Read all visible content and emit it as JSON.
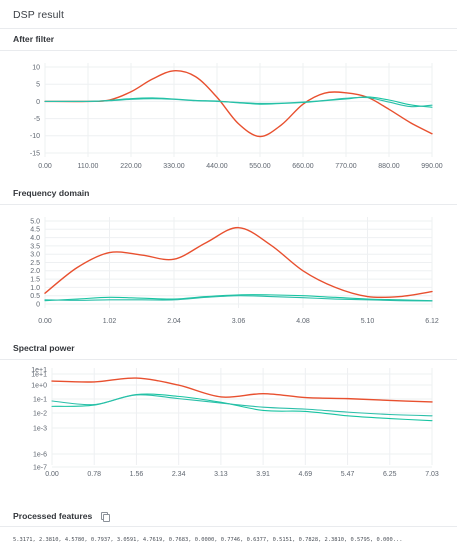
{
  "page_title": "DSP result",
  "sections": [
    {
      "title": "After filter",
      "chart": {
        "type": "line",
        "x_ticks": [
          "0.00",
          "110.00",
          "220.00",
          "330.00",
          "440.00",
          "550.00",
          "660.00",
          "770.00",
          "880.00",
          "990.00"
        ],
        "y_ticks": [
          "10",
          "5",
          "0",
          "-5",
          "-10",
          "-15"
        ],
        "ylim": [
          -15,
          10
        ],
        "xlim": [
          0,
          990
        ],
        "colors": [
          "#e8502f",
          "#18c4a2",
          "#2bbfa9"
        ]
      }
    },
    {
      "title": "Frequency domain",
      "chart": {
        "type": "line",
        "x_ticks": [
          "0.00",
          "1.02",
          "2.04",
          "3.06",
          "4.08",
          "5.10",
          "6.12"
        ],
        "y_ticks": [
          "5.0",
          "4.5",
          "4.0",
          "3.5",
          "3.0",
          "2.5",
          "2.0",
          "1.5",
          "1.0",
          "0.5",
          "0"
        ],
        "ylim": [
          0,
          5
        ],
        "xlim": [
          0,
          6.12
        ],
        "colors": [
          "#e8502f",
          "#18c4a2",
          "#2bbfa9"
        ]
      }
    },
    {
      "title": "Spectral power",
      "chart": {
        "type": "line",
        "x_ticks": [
          "0.00",
          "0.78",
          "1.56",
          "2.34",
          "3.13",
          "3.91",
          "4.69",
          "5.47",
          "6.25",
          "7.03"
        ],
        "y_ticks": [
          "1e+1",
          "1e+0",
          "1e-1",
          "1e-2",
          "1e-3",
          "1e-6",
          "1e-7"
        ],
        "y_scale": "log",
        "xlim": [
          0,
          7.03
        ],
        "colors": [
          "#e8502f",
          "#18c4a2",
          "#2bbfa9"
        ]
      }
    }
  ],
  "processed": {
    "title": "Processed features",
    "copy_icon": "copy-icon",
    "values_text": "5.3171, 2.3810, 4.5780, 0.7937, 3.0591, 4.7619, 0.7683, 0.0000, 0.7746, 0.6377, 0.5151, 0.7828, 2.3810, 0.5795, 0.000..."
  },
  "chart_data": [
    {
      "type": "line",
      "title": "After filter",
      "xlabel": "",
      "ylabel": "",
      "x": [
        0,
        110,
        165,
        220,
        275,
        330,
        385,
        440,
        495,
        550,
        605,
        660,
        715,
        770,
        825,
        880,
        935,
        990
      ],
      "ylim": [
        -15,
        10
      ],
      "series": [
        {
          "values": [
            0,
            0,
            0.4,
            2.8,
            6.5,
            8.9,
            7.2,
            1.2,
            -6.5,
            -10.2,
            -6.8,
            -0.8,
            2.4,
            2.5,
            1.2,
            -2.3,
            -6.2,
            -9.4
          ]
        },
        {
          "values": [
            0,
            0,
            0.3,
            0.8,
            1.0,
            0.7,
            0.3,
            0.1,
            -0.4,
            -0.8,
            -0.6,
            -0.3,
            0.2,
            0.7,
            1.3,
            0.4,
            -1.0,
            -1.7
          ]
        },
        {
          "values": [
            0,
            0,
            0.2,
            0.6,
            0.8,
            0.6,
            0.2,
            0.0,
            -0.3,
            -0.6,
            -0.5,
            -0.2,
            0.3,
            0.9,
            1.1,
            -0.2,
            -1.5,
            -1.1
          ]
        }
      ]
    },
    {
      "type": "line",
      "title": "Frequency domain",
      "xlabel": "",
      "ylabel": "",
      "x": [
        0,
        0.51,
        1.02,
        1.53,
        2.04,
        2.55,
        3.06,
        3.57,
        4.08,
        4.59,
        5.1,
        5.61,
        6.12
      ],
      "ylim": [
        0,
        5
      ],
      "series": [
        {
          "values": [
            0.65,
            2.2,
            3.1,
            2.95,
            2.7,
            3.7,
            4.6,
            3.55,
            2.0,
            1.0,
            0.45,
            0.45,
            0.75
          ]
        },
        {
          "values": [
            0.2,
            0.3,
            0.4,
            0.35,
            0.3,
            0.45,
            0.55,
            0.55,
            0.5,
            0.4,
            0.3,
            0.25,
            0.2
          ]
        },
        {
          "values": [
            0.25,
            0.22,
            0.25,
            0.25,
            0.25,
            0.4,
            0.5,
            0.45,
            0.38,
            0.3,
            0.25,
            0.2,
            0.18
          ]
        }
      ]
    },
    {
      "type": "line",
      "title": "Spectral power",
      "xlabel": "",
      "ylabel": "",
      "y_scale": "log",
      "x": [
        0,
        0.78,
        1.56,
        2.34,
        3.13,
        3.91,
        4.69,
        5.47,
        6.25,
        7.03
      ],
      "series": [
        {
          "values": [
            3.0,
            2.6,
            5.0,
            1.5,
            0.2,
            0.35,
            0.18,
            0.15,
            0.11,
            0.085
          ]
        },
        {
          "values": [
            0.04,
            0.05,
            0.3,
            0.22,
            0.08,
            0.02,
            0.017,
            0.008,
            0.005,
            0.0035
          ]
        },
        {
          "values": [
            0.1,
            0.055,
            0.28,
            0.15,
            0.07,
            0.035,
            0.025,
            0.015,
            0.01,
            0.008
          ]
        }
      ]
    }
  ]
}
